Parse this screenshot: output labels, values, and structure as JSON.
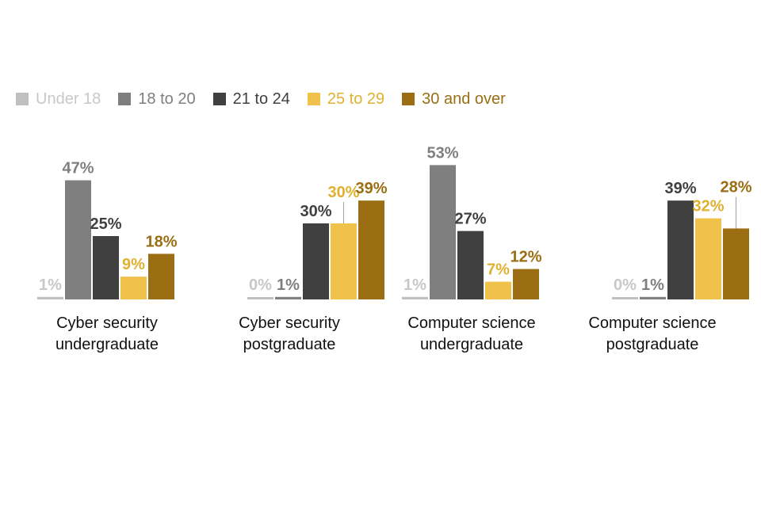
{
  "chart_data": {
    "type": "bar",
    "title": "",
    "xlabel": "",
    "ylabel": "",
    "grid": false,
    "legend_position": "top-left",
    "value_format": "percent",
    "categories": [
      [
        "Cyber security",
        "undergraduate"
      ],
      [
        "Cyber security",
        "postgraduate"
      ],
      [
        "Computer science",
        "undergraduate"
      ],
      [
        "Computer science",
        "postgraduate"
      ]
    ],
    "series": [
      {
        "name": "Under 18",
        "color": "#c0c0c0",
        "label_color": "#c8c8c8",
        "values": [
          1,
          0,
          1,
          0
        ]
      },
      {
        "name": "18 to 20",
        "color": "#7f7f7f",
        "label_color": "#7f7f7f",
        "values": [
          47,
          1,
          53,
          1
        ]
      },
      {
        "name": "21 to 24",
        "color": "#404040",
        "label_color": "#404040",
        "values": [
          25,
          30,
          27,
          39
        ]
      },
      {
        "name": "25 to 29",
        "color": "#f0c24b",
        "label_color": "#e0b030",
        "values": [
          9,
          30,
          7,
          32
        ]
      },
      {
        "name": "30 and over",
        "color": "#9b6e14",
        "label_color": "#9b6e14",
        "values": [
          18,
          39,
          12,
          28
        ]
      }
    ]
  }
}
